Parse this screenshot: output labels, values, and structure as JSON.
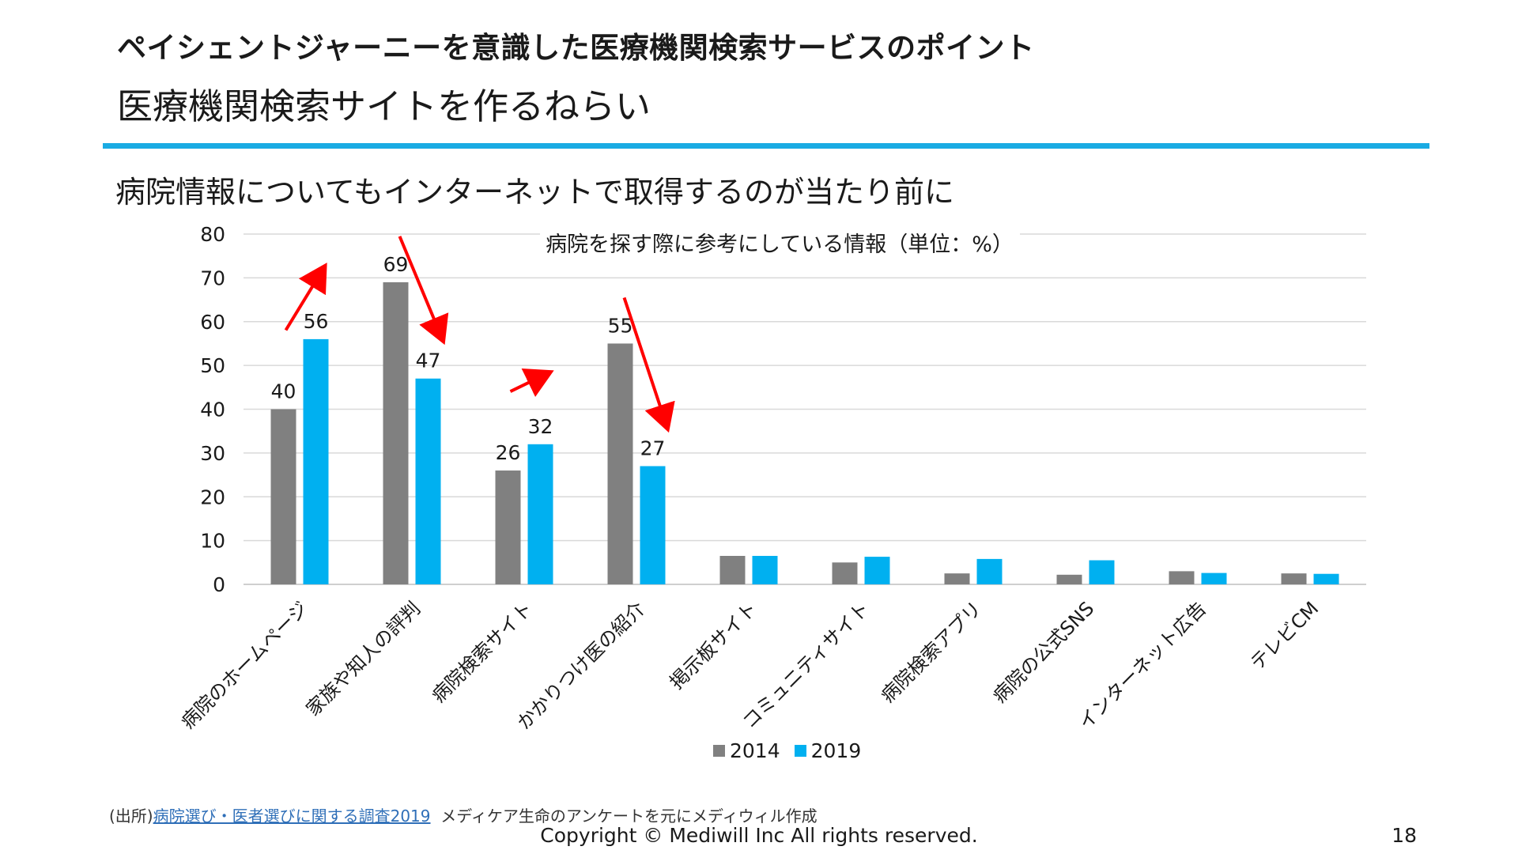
{
  "page": {
    "heading": "ペイシェントジャーニーを意識した医療機関検索サービスのポイント",
    "subheading": "医療機関検索サイトを作るねらい",
    "lead": "病院情報についてもインターネットで取得するのが当たり前に",
    "source_prefix": "(出所)",
    "source_link": "病院選び・医者選びに関する調査2019",
    "source_suffix": "メディケア生命のアンケートを元にメディウィル作成",
    "copyright": "Copyright © Mediwill Inc All rights reserved.",
    "page_number": "18",
    "accent_color": "#1aabe3"
  },
  "chart_data": {
    "type": "bar",
    "title": "病院を探す際に参考にしている情報（単位：%）",
    "categories": [
      "病院のホームページ",
      "家族や知人の評判",
      "病院検索サイト",
      "かかりつけ医の紹介",
      "掲示板サイト",
      "コミュニティサイト",
      "病院検索アプリ",
      "病院の公式SNS",
      "インターネット広告",
      "テレビCM"
    ],
    "series": [
      {
        "name": "2014",
        "color": "#808080",
        "values": [
          40,
          69,
          26,
          55,
          6.5,
          5,
          2.5,
          2.2,
          3,
          2.5
        ]
      },
      {
        "name": "2019",
        "color": "#00b0f0",
        "values": [
          56,
          47,
          32,
          27,
          6.5,
          6.3,
          5.8,
          5.5,
          2.6,
          2.4
        ]
      }
    ],
    "data_labels": [
      {
        "category": 0,
        "series": 0,
        "text": "40"
      },
      {
        "category": 0,
        "series": 1,
        "text": "56"
      },
      {
        "category": 1,
        "series": 0,
        "text": "69"
      },
      {
        "category": 1,
        "series": 1,
        "text": "47"
      },
      {
        "category": 2,
        "series": 0,
        "text": "26"
      },
      {
        "category": 2,
        "series": 1,
        "text": "32"
      },
      {
        "category": 3,
        "series": 0,
        "text": "55"
      },
      {
        "category": 3,
        "series": 1,
        "text": "27"
      }
    ],
    "trend_arrows": [
      {
        "category": 0,
        "direction": "up"
      },
      {
        "category": 1,
        "direction": "down"
      },
      {
        "category": 2,
        "direction": "up"
      },
      {
        "category": 3,
        "direction": "down"
      }
    ],
    "arrow_color": "#ff0000",
    "ylim": [
      0,
      80
    ],
    "yticks": [
      0,
      10,
      20,
      30,
      40,
      50,
      60,
      70,
      80
    ],
    "grid": true,
    "legend_position": "bottom"
  }
}
